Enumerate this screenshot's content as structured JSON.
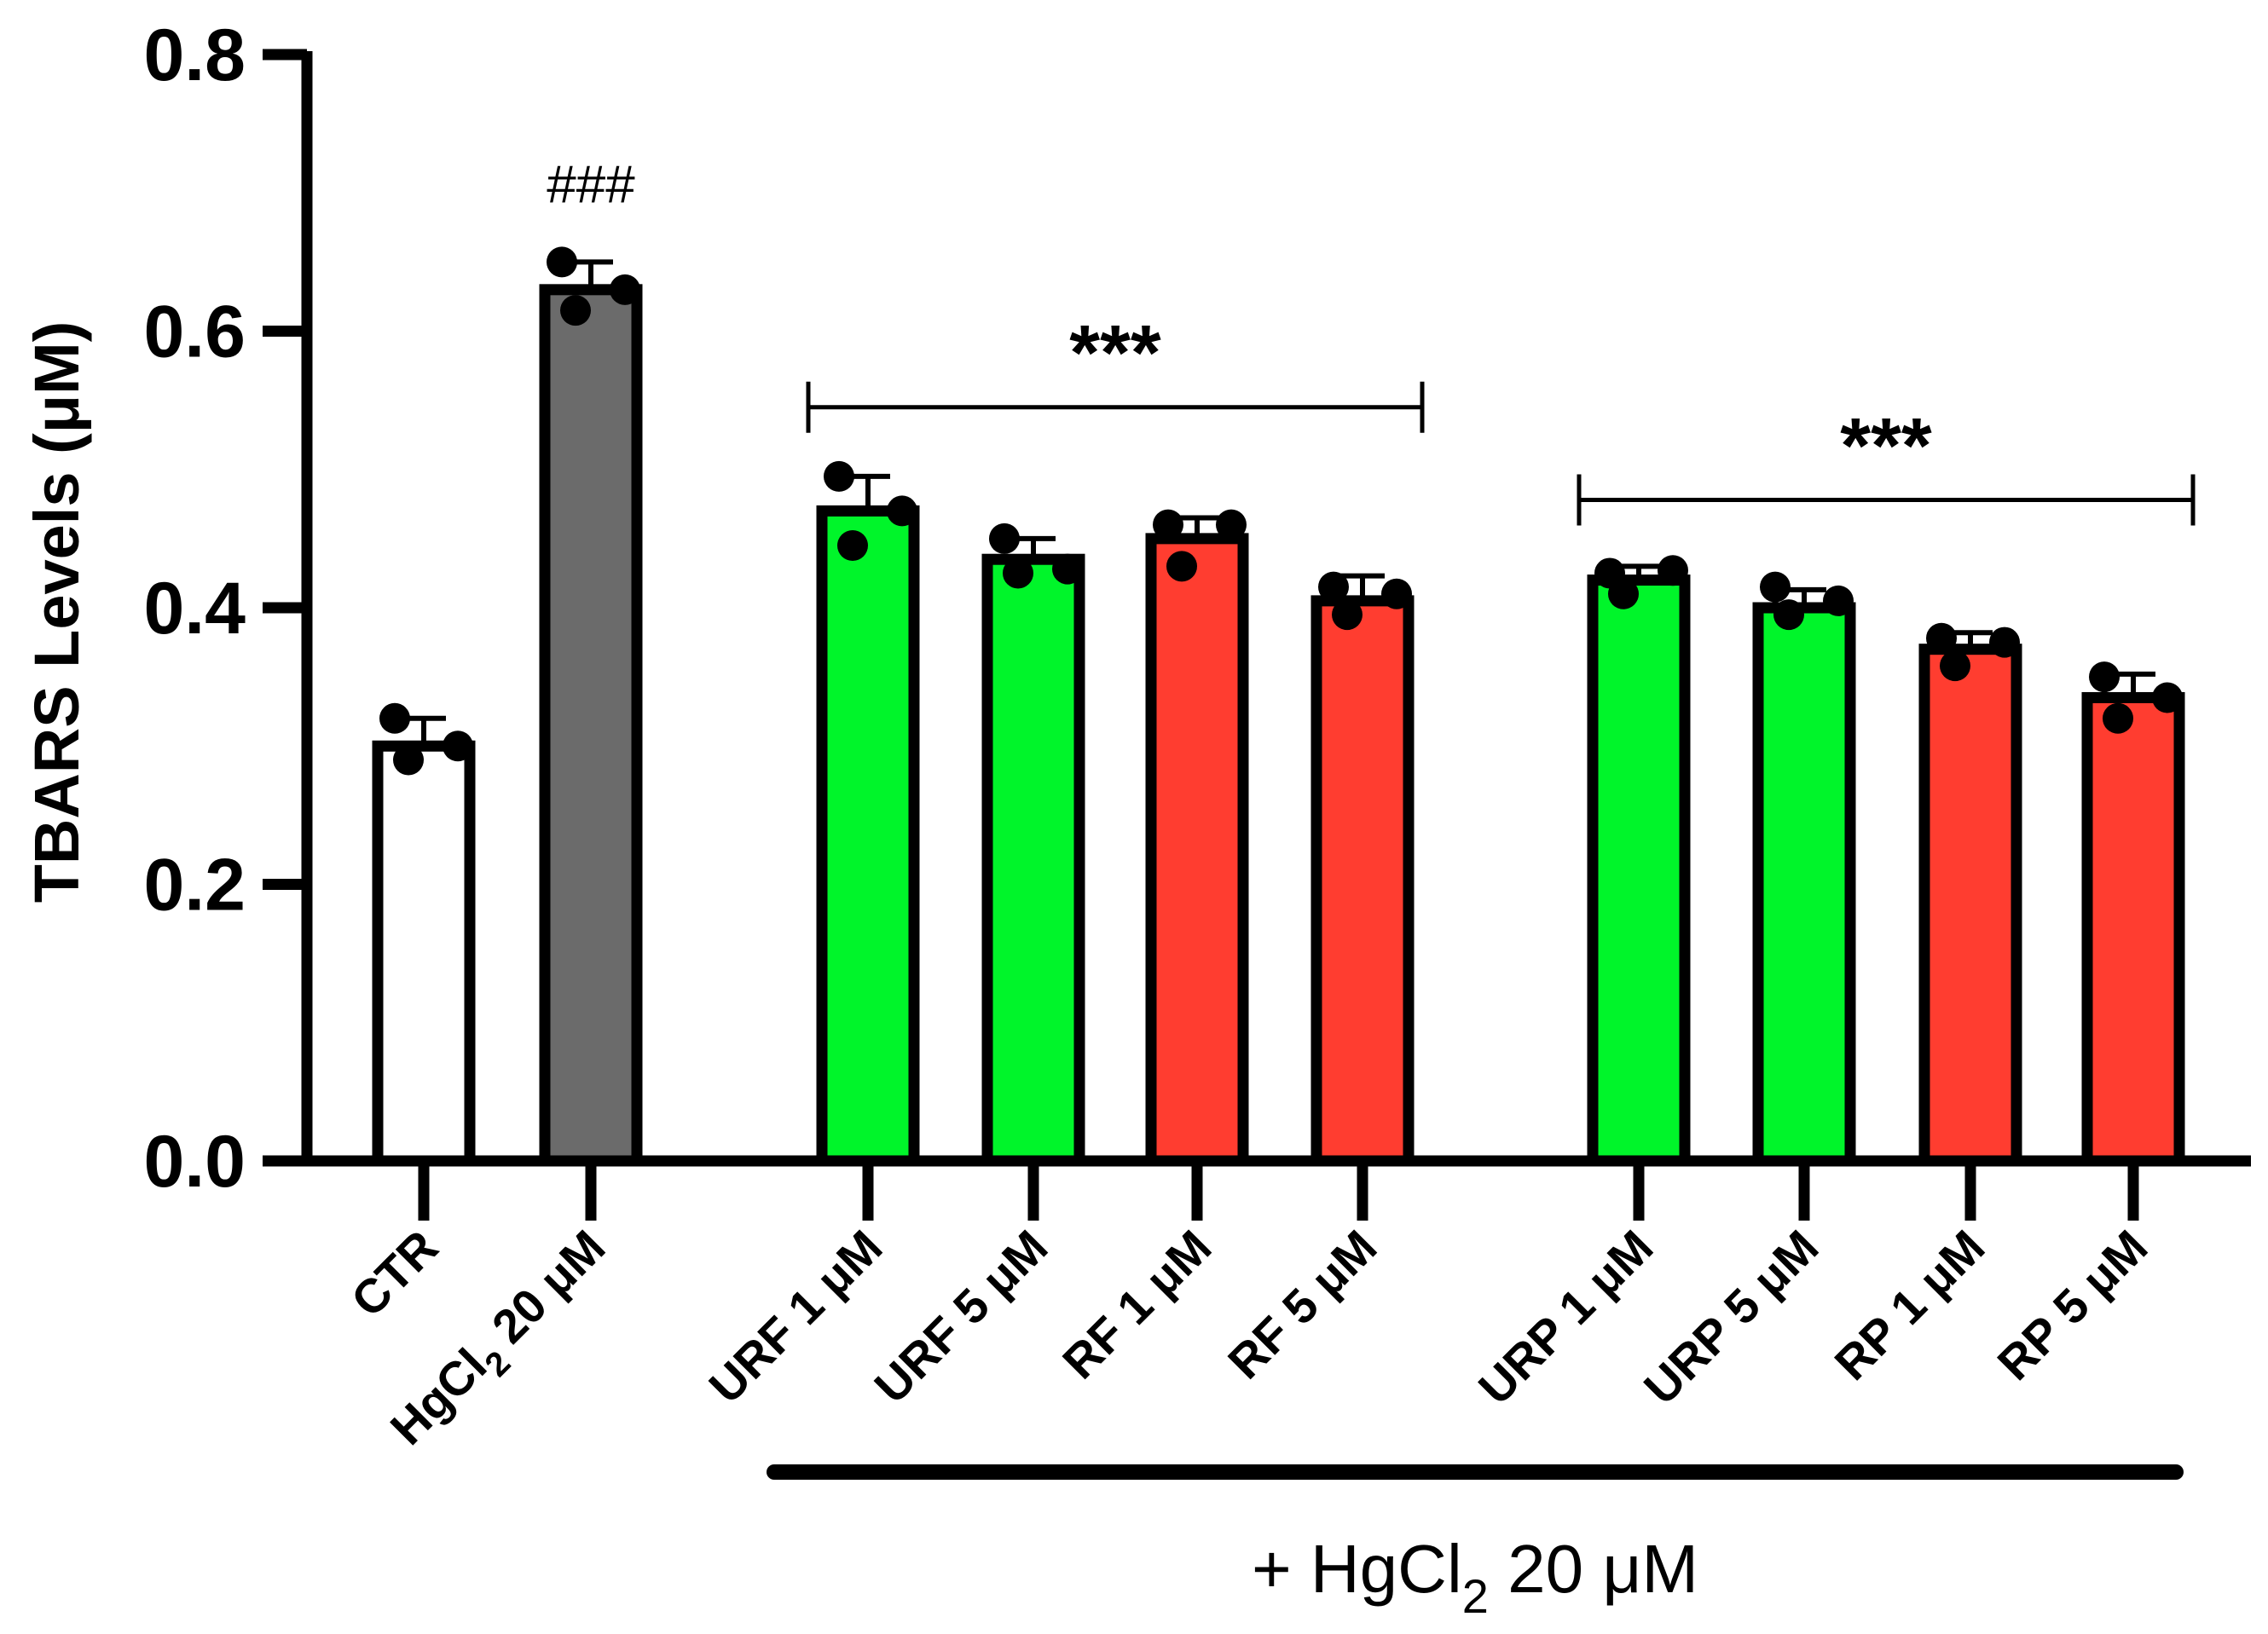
{
  "chart_data": {
    "type": "bar",
    "ylabel": "TBARS Levels (μM)",
    "ylim": [
      0,
      0.8
    ],
    "yticks": [
      "0.0",
      "0.2",
      "0.4",
      "0.6",
      "0.8"
    ],
    "categories": [
      {
        "label": "CTR",
        "value": 0.3,
        "error": 0.02,
        "color": "#ffffff",
        "points": [
          0.32,
          0.29,
          0.3
        ]
      },
      {
        "label": "HgCl",
        "label_sub": "2",
        "label_suffix": " 20 μM",
        "value": 0.63,
        "error": 0.02,
        "color": "#6b6b6b",
        "points": [
          0.65,
          0.615,
          0.63
        ]
      },
      {
        "label": "URF 1 μM",
        "value": 0.47,
        "error": 0.025,
        "color": "#00f52a",
        "points": [
          0.495,
          0.445,
          0.47
        ]
      },
      {
        "label": "URF 5 μM",
        "value": 0.435,
        "error": 0.015,
        "color": "#00f52a",
        "points": [
          0.45,
          0.425,
          0.428
        ]
      },
      {
        "label": "RF 1 μM",
        "value": 0.45,
        "error": 0.015,
        "color": "#ff3d30",
        "points": [
          0.46,
          0.43,
          0.46
        ]
      },
      {
        "label": "RF 5 μM",
        "value": 0.405,
        "error": 0.018,
        "color": "#ff3d30",
        "points": [
          0.415,
          0.395,
          0.41
        ]
      },
      {
        "label": "URP 1 μM",
        "value": 0.42,
        "error": 0.01,
        "color": "#00f52a",
        "points": [
          0.425,
          0.41,
          0.427
        ]
      },
      {
        "label": "URP 5 μM",
        "value": 0.4,
        "error": 0.013,
        "color": "#00f52a",
        "points": [
          0.415,
          0.395,
          0.405
        ]
      },
      {
        "label": "RP 1 μM",
        "value": 0.37,
        "error": 0.012,
        "color": "#ff3d30",
        "points": [
          0.378,
          0.358,
          0.375
        ]
      },
      {
        "label": "RP 5 μM",
        "value": 0.335,
        "error": 0.017,
        "color": "#ff3d30",
        "points": [
          0.35,
          0.32,
          0.335
        ]
      }
    ],
    "annotations": [
      {
        "text": "###",
        "category_index": 1
      },
      {
        "text": "***",
        "from_index": 2,
        "to_index": 5,
        "y": 0.545
      },
      {
        "text": "***",
        "from_index": 6,
        "to_index": 9,
        "y": 0.478
      }
    ],
    "group_note": {
      "prefix": "+ HgCl",
      "sub": "2",
      "suffix": " 20 μM",
      "from_index": 2,
      "to_index": 9
    }
  }
}
